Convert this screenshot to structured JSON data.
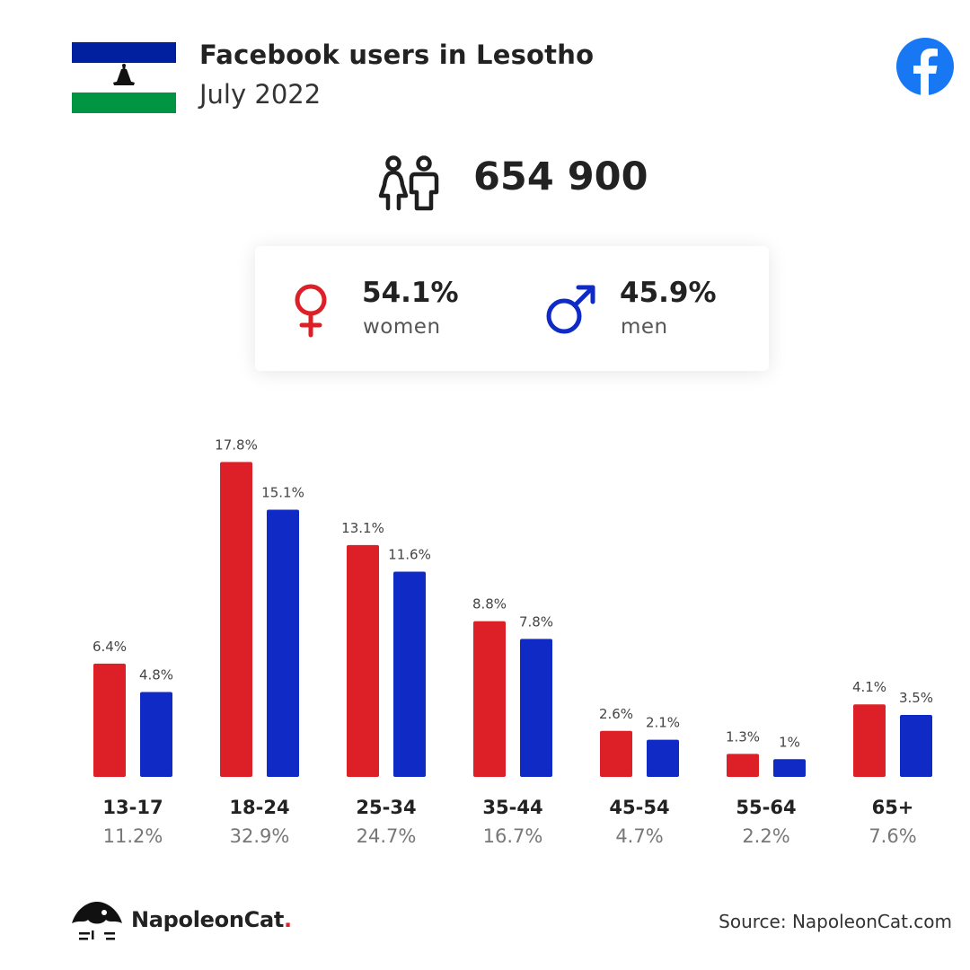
{
  "header": {
    "title": "Facebook users in Lesotho",
    "subtitle": "July 2022"
  },
  "total": {
    "value": "654 900",
    "icon": "users-icon"
  },
  "gender": {
    "women": {
      "percent": "54.1%",
      "label": "women",
      "color": "#dd2027",
      "icon": "female-symbol-icon"
    },
    "men": {
      "percent": "45.9%",
      "label": "men",
      "color": "#0f2ac5",
      "icon": "male-symbol-icon"
    }
  },
  "colors": {
    "women": "#dd2027",
    "men": "#0f2ac5",
    "facebook": "#1877f2",
    "flag_blue": "#00209f",
    "flag_green": "#009543"
  },
  "chart_data": {
    "type": "bar",
    "categories": [
      "13-17",
      "18-24",
      "25-34",
      "35-44",
      "45-54",
      "55-64",
      "65+"
    ],
    "totals": [
      "11.2%",
      "32.9%",
      "24.7%",
      "16.7%",
      "4.7%",
      "2.2%",
      "7.6%"
    ],
    "series": [
      {
        "key": "women",
        "values": [
          6.4,
          17.8,
          13.1,
          8.8,
          2.6,
          1.3,
          4.1
        ],
        "labels": [
          "6.4%",
          "17.8%",
          "13.1%",
          "8.8%",
          "2.6%",
          "1.3%",
          "4.1%"
        ]
      },
      {
        "key": "men",
        "values": [
          4.8,
          15.1,
          11.6,
          7.8,
          2.1,
          1.0,
          3.5
        ],
        "labels": [
          "4.8%",
          "15.1%",
          "11.6%",
          "7.8%",
          "2.1%",
          "1%",
          "3.5%"
        ]
      }
    ],
    "title": "",
    "xlabel": "",
    "ylabel": "",
    "grid": false
  },
  "footer": {
    "brand": "NapoleonCat",
    "brand_dot": ".",
    "source": "Source: NapoleonCat.com"
  }
}
